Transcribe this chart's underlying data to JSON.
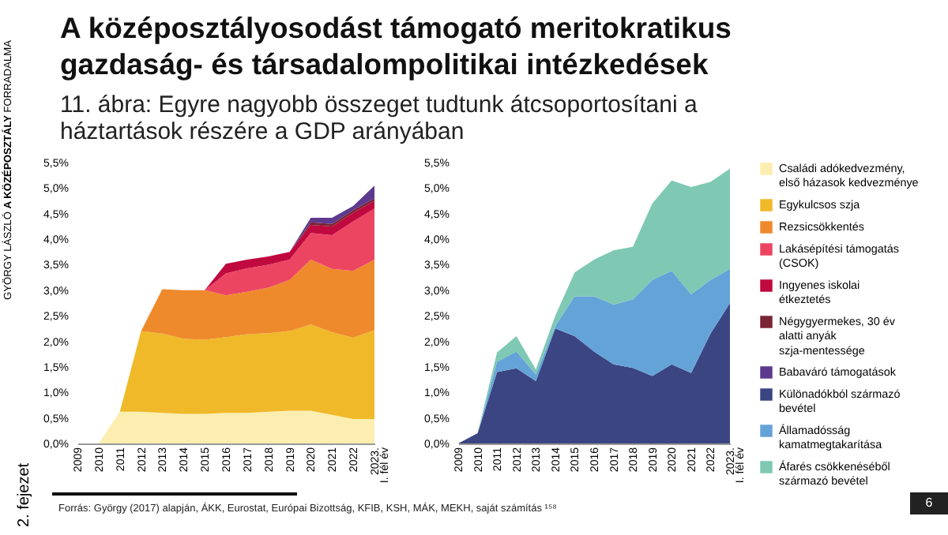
{
  "chart_data": [
    {
      "type": "area",
      "title": "A középosztályosodást támogató meritokratikus gazdaság- és társadalompolitikai intézkedések",
      "subtitle": "11. ábra: Egyre nagyobb összeget tudtunk átcsoportosítani a háztartások részére a GDP arányában",
      "annotations": [
        "Forrás: György (2017) alapján, ÁKK, Eurostat, Európai Bizottság, KFIB, KSH, MÁK, MEKH, saját számítás ¹⁵⁸",
        "GYÖRGY LÁSZLÓ",
        "A KÖZÉPOSZTÁLY",
        "FORRADALMA",
        "2. fejezet",
        "6"
      ],
      "stacked": true,
      "legend": "right",
      "grid": false,
      "categories": [
        "2009",
        "2010",
        "2011",
        "2012",
        "2013",
        "2014",
        "2015",
        "2016",
        "2017",
        "2018",
        "2019",
        "2020",
        "2021",
        "2022",
        "2023. I. fél év"
      ],
      "ylim": [
        0,
        5.5
      ],
      "yticks": [
        {
          "value": 0,
          "label": "0,0%"
        },
        {
          "value": 0.5,
          "label": "0,5%"
        },
        {
          "value": 1,
          "label": "1,0%"
        },
        {
          "value": 1.5,
          "label": "1,5%"
        },
        {
          "value": 2,
          "label": "2,0%"
        },
        {
          "value": 2.5,
          "label": "2,5%"
        },
        {
          "value": 3,
          "label": "3,0%"
        },
        {
          "value": 3.5,
          "label": "3,5%"
        },
        {
          "value": 4,
          "label": "4,0%"
        },
        {
          "value": 4.5,
          "label": "4,5%"
        },
        {
          "value": 5,
          "label": "5,0%"
        },
        {
          "value": 5.5,
          "label": "5,5%"
        }
      ],
      "series": [
        {
          "name": "Családi adókedvezmény, első házasok kedvezménye",
          "color": "#fbeeb0",
          "values": [
            0,
            0,
            0.62,
            0.62,
            0.6,
            0.58,
            0.58,
            0.6,
            0.6,
            0.62,
            0.64,
            0.64,
            0.56,
            0.48,
            0.48
          ]
        },
        {
          "name": "Egykulcsos szja",
          "color": "#f0b92a",
          "values": [
            0,
            0,
            0,
            1.58,
            1.55,
            1.47,
            1.45,
            1.48,
            1.54,
            1.54,
            1.56,
            1.69,
            1.62,
            1.59,
            1.74
          ]
        },
        {
          "name": "Rezsicsökkentés",
          "color": "#ef8a2c",
          "values": [
            0,
            0,
            0,
            0,
            0.87,
            0.95,
            0.97,
            0.82,
            0.83,
            0.89,
            1.0,
            1.27,
            1.24,
            1.31,
            1.38
          ]
        },
        {
          "name": "Lakásépítési támogatás (CSOK)",
          "color": "#ec4562",
          "values": [
            0,
            0,
            0,
            0,
            0,
            0,
            0,
            0.43,
            0.46,
            0.45,
            0.4,
            0.52,
            0.66,
            0.97,
            1.0
          ]
        },
        {
          "name": "Ingyenes iskolai étkeztetés",
          "color": "#c0093e",
          "values": [
            0,
            0,
            0,
            0,
            0,
            0,
            0,
            0.19,
            0.17,
            0.16,
            0.15,
            0.16,
            0.17,
            0.17,
            0.15
          ]
        },
        {
          "name": "Négygyermekes, 30 év alatti anyák szja-mentessége",
          "color": "#7b2434",
          "values": [
            0,
            0,
            0,
            0,
            0,
            0,
            0,
            0,
            0,
            0,
            0,
            0.05,
            0.05,
            0.05,
            0.05
          ]
        },
        {
          "name": "Babaváró támogatások",
          "color": "#5d3a8e",
          "values": [
            0,
            0,
            0,
            0,
            0,
            0,
            0,
            0,
            0,
            0,
            0,
            0.09,
            0.12,
            0.08,
            0.25
          ]
        }
      ]
    },
    {
      "type": "area",
      "stacked": true,
      "legend": "right",
      "grid": false,
      "categories": [
        "2009",
        "2010",
        "2011",
        "2012",
        "2013",
        "2014",
        "2015",
        "2016",
        "2017",
        "2018",
        "2019",
        "2020",
        "2021",
        "2022",
        "2023. I. fél év"
      ],
      "ylim": [
        0,
        5.5
      ],
      "yticks": [
        {
          "value": 0,
          "label": "0,0%"
        },
        {
          "value": 0.5,
          "label": "0,5%"
        },
        {
          "value": 1,
          "label": "1,0%"
        },
        {
          "value": 1.5,
          "label": "1,5%"
        },
        {
          "value": 2,
          "label": "2,0%"
        },
        {
          "value": 2.5,
          "label": "2,5%"
        },
        {
          "value": 3,
          "label": "3,0%"
        },
        {
          "value": 3.5,
          "label": "3,5%"
        },
        {
          "value": 4,
          "label": "4,0%"
        },
        {
          "value": 4.5,
          "label": "4,5%"
        },
        {
          "value": 5,
          "label": "5,0%"
        },
        {
          "value": 5.5,
          "label": "5,5%"
        }
      ],
      "series": [
        {
          "name": "Különadókból származó bevétel",
          "color": "#3a4582",
          "values": [
            0,
            0.2,
            1.4,
            1.47,
            1.22,
            2.25,
            2.1,
            1.8,
            1.55,
            1.48,
            1.32,
            1.55,
            1.38,
            2.15,
            2.75
          ]
        },
        {
          "name": "Államadósság kamatmegtakarítása",
          "color": "#64a3d8",
          "values": [
            0,
            0,
            0.2,
            0.33,
            0.13,
            0.05,
            0.78,
            1.08,
            1.17,
            1.34,
            1.88,
            1.83,
            1.54,
            1.05,
            0.67
          ]
        },
        {
          "name": "Áfarés csökkenéséből származó bevétel",
          "color": "#7ec8b4",
          "values": [
            0,
            0,
            0.18,
            0.3,
            0.1,
            0.2,
            0.47,
            0.72,
            1.06,
            1.03,
            1.5,
            1.77,
            2.1,
            1.92,
            1.96
          ]
        }
      ]
    }
  ]
}
